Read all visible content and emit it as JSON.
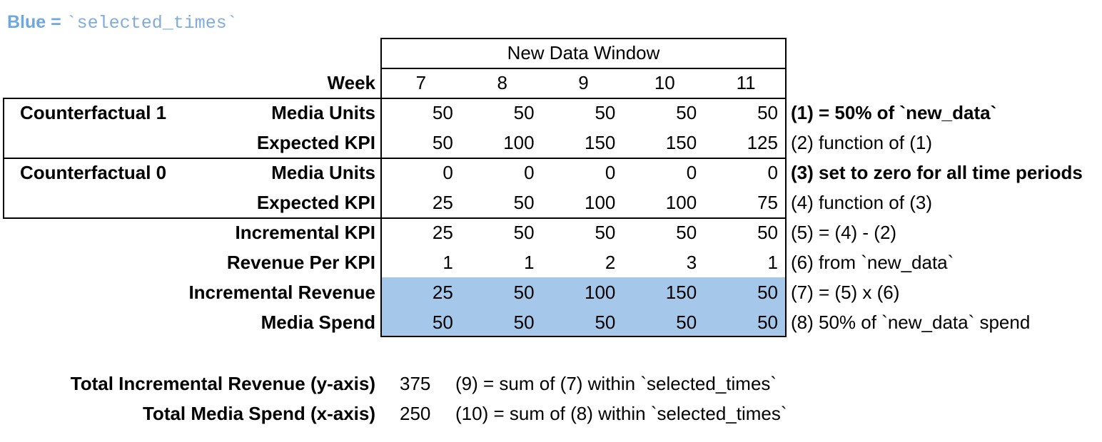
{
  "legend": {
    "prefix": "Blue = ",
    "code": "`selected_times`"
  },
  "colors": {
    "highlight_blue": "#A5C8EA",
    "legend_text_blue": "#6FA8DC",
    "border_black": "#000000"
  },
  "table": {
    "window_title": "New Data Window",
    "week_label": "Week",
    "weeks": [
      "7",
      "8",
      "9",
      "10",
      "11"
    ],
    "groups": [
      {
        "label": "Counterfactual 1"
      },
      {
        "label": "Counterfactual 0"
      }
    ],
    "rows": [
      {
        "label": "Media Units",
        "values": [
          "50",
          "50",
          "50",
          "50",
          "50"
        ],
        "note": "(1) = 50% of `new_data`",
        "note_bold": true,
        "highlight": false
      },
      {
        "label": "Expected KPI",
        "values": [
          "50",
          "100",
          "150",
          "150",
          "125"
        ],
        "note": "(2) function of (1)",
        "note_bold": false,
        "highlight": false
      },
      {
        "label": "Media Units",
        "values": [
          "0",
          "0",
          "0",
          "0",
          "0"
        ],
        "note": "(3) set to zero for all time periods",
        "note_bold": true,
        "highlight": false
      },
      {
        "label": "Expected KPI",
        "values": [
          "25",
          "50",
          "100",
          "100",
          "75"
        ],
        "note": "(4) function of (3)",
        "note_bold": false,
        "highlight": false
      },
      {
        "label": "Incremental KPI",
        "values": [
          "25",
          "50",
          "50",
          "50",
          "50"
        ],
        "note": "(5) = (4) - (2)",
        "note_bold": false,
        "highlight": false
      },
      {
        "label": "Revenue Per KPI",
        "values": [
          "1",
          "1",
          "2",
          "3",
          "1"
        ],
        "note": "(6) from `new_data`",
        "note_bold": false,
        "highlight": false
      },
      {
        "label": "Incremental Revenue",
        "values": [
          "25",
          "50",
          "100",
          "150",
          "50"
        ],
        "note": "(7) = (5) x (6)",
        "note_bold": false,
        "highlight": true
      },
      {
        "label": "Media Spend",
        "values": [
          "50",
          "50",
          "50",
          "50",
          "50"
        ],
        "note": "(8) 50% of `new_data` spend",
        "note_bold": false,
        "highlight": true
      }
    ]
  },
  "totals": [
    {
      "label": "Total Incremental Revenue (y-axis)",
      "value": "375",
      "note": "(9) = sum of (7) within `selected_times`"
    },
    {
      "label": "Total Media Spend (x-axis)",
      "value": "250",
      "note": "(10) = sum of (8) within `selected_times`"
    }
  ]
}
